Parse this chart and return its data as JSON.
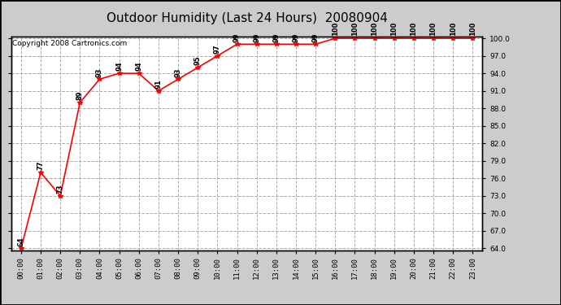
{
  "title": "Outdoor Humidity (Last 24 Hours)  20080904",
  "copyright": "Copyright 2008 Cartronics.com",
  "hours": [
    "00:00",
    "01:00",
    "02:00",
    "03:00",
    "04:00",
    "05:00",
    "06:00",
    "07:00",
    "08:00",
    "09:00",
    "10:00",
    "11:00",
    "12:00",
    "13:00",
    "14:00",
    "15:00",
    "16:00",
    "17:00",
    "18:00",
    "19:00",
    "20:00",
    "21:00",
    "22:00",
    "23:00"
  ],
  "values": [
    64,
    77,
    73,
    89,
    93,
    94,
    94,
    91,
    93,
    95,
    97,
    99,
    99,
    99,
    99,
    99,
    100,
    100,
    100,
    100,
    100,
    100,
    100,
    100
  ],
  "ylim_min": 64.0,
  "ylim_max": 100.0,
  "yticks": [
    64.0,
    67.0,
    70.0,
    73.0,
    76.0,
    79.0,
    82.0,
    85.0,
    88.0,
    91.0,
    94.0,
    97.0,
    100.0
  ],
  "line_color": "red",
  "marker": "*",
  "marker_size": 4,
  "grid_color": "#aaaaaa",
  "grid_style": "--",
  "bg_color": "white",
  "title_fontsize": 11,
  "copyright_fontsize": 6.5,
  "tick_fontsize": 6.5,
  "annotation_fontsize": 6,
  "outer_bg": "#cccccc"
}
